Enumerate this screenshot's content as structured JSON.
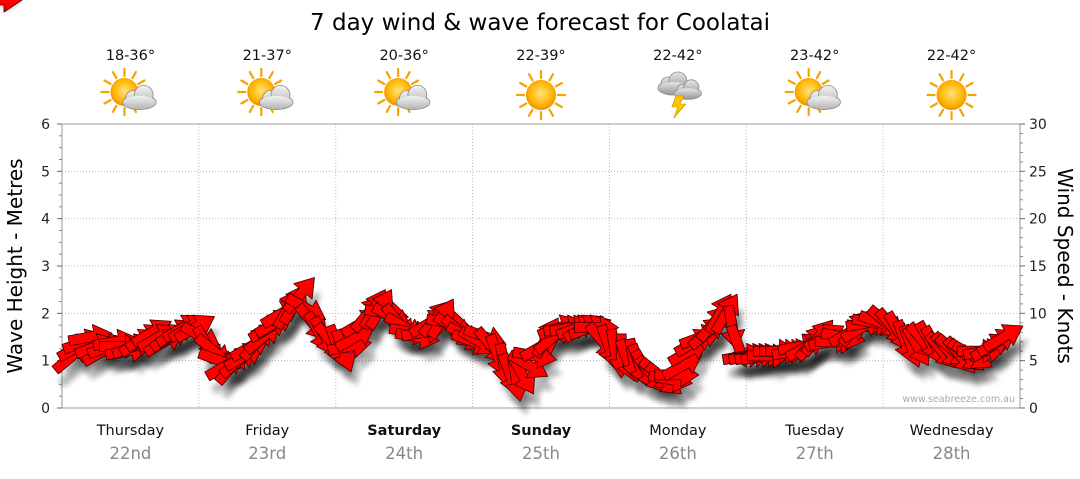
{
  "chart_data": {
    "type": "line",
    "title": "7 day wind & wave forecast for Coolatai",
    "ylabel": "Wave Height - Metres",
    "ylabel_right": "Wind Speed - Knots",
    "ylim": [
      0,
      6
    ],
    "ylim_right": [
      0,
      30
    ],
    "y_ticks": [
      "0",
      "1",
      "2",
      "3",
      "4",
      "5",
      "6"
    ],
    "y_ticks_right": [
      "0",
      "5",
      "10",
      "15",
      "20",
      "25",
      "30"
    ],
    "grid": true,
    "watermark": "www.seabreeze.com.au",
    "days": [
      {
        "name": "Thursday",
        "date": "22nd",
        "temp": "18-36°",
        "weather": "partly-cloudy-icon",
        "bold": false
      },
      {
        "name": "Friday",
        "date": "23rd",
        "temp": "21-37°",
        "weather": "partly-cloudy-icon",
        "bold": false
      },
      {
        "name": "Saturday",
        "date": "24th",
        "temp": "20-36°",
        "weather": "partly-cloudy-icon",
        "bold": true
      },
      {
        "name": "Sunday",
        "date": "25th",
        "temp": "22-39°",
        "weather": "sunny-icon",
        "bold": true
      },
      {
        "name": "Monday",
        "date": "26th",
        "temp": "22-42°",
        "weather": "thunderstorm-icon",
        "bold": false
      },
      {
        "name": "Tuesday",
        "date": "27th",
        "temp": "23-42°",
        "weather": "partly-cloudy-icon",
        "bold": false
      },
      {
        "name": "Wednesday",
        "date": "28th",
        "temp": "22-42°",
        "weather": "sunny-icon",
        "bold": false
      }
    ],
    "wind_series": {
      "name": "Wind",
      "color": "#ff0000",
      "speed_knots": [
        5.5,
        6.5,
        7,
        7.5,
        6.5,
        6,
        6.5,
        7,
        6.5,
        6,
        6.5,
        7,
        7.5,
        8,
        7.5,
        7,
        7.5,
        8,
        8.5,
        8.5,
        8.5,
        7.5,
        6.5,
        6,
        5,
        4.5,
        4.5,
        5,
        5.5,
        6.5,
        7,
        7.5,
        8.5,
        9,
        10,
        10.5,
        11,
        12,
        10.5,
        9,
        8,
        7.5,
        7,
        6.5,
        6,
        6.5,
        7.5,
        9,
        10,
        10.5,
        10.5,
        10,
        9.5,
        9,
        8.5,
        8,
        7.5,
        8,
        9,
        9.5,
        9.5,
        9,
        8.5,
        8,
        7.5,
        7,
        7,
        7.5,
        6.5,
        5.5,
        4.5,
        3.5,
        3,
        3.5,
        4.5,
        5.5,
        6.5,
        7.5,
        7.5,
        8.5,
        8.5,
        8.5,
        8.5,
        8.5,
        8.5,
        8.5,
        7,
        6.5,
        6,
        5.5,
        5,
        5,
        4.5,
        4,
        3.5,
        3.5,
        3,
        3,
        3.5,
        4.5,
        6,
        7,
        7.5,
        8,
        9,
        10,
        10,
        8.5,
        6.5,
        5.5,
        5.5,
        5.5,
        5.5,
        5.5,
        6,
        6,
        6,
        6,
        6.5,
        6.5,
        7,
        7.5,
        7.5,
        7,
        7,
        7.5,
        8,
        8.5,
        8.5,
        9,
        9,
        9,
        9,
        8.5,
        8,
        7,
        6.5,
        6.5,
        7,
        7,
        6.5,
        6,
        6,
        6,
        5.5,
        5.5,
        5.5,
        6,
        6,
        6.5,
        7,
        7.5,
        8
      ],
      "direction_deg": [
        50,
        60,
        70,
        80,
        70,
        60,
        70,
        80,
        90,
        80,
        70,
        60,
        60,
        60,
        60,
        60,
        60,
        60,
        60,
        60,
        60,
        120,
        150,
        130,
        110,
        60,
        40,
        50,
        60,
        60,
        40,
        50,
        60,
        60,
        60,
        30,
        30,
        40,
        120,
        140,
        150,
        150,
        140,
        160,
        160,
        80,
        60,
        60,
        40,
        30,
        30,
        100,
        120,
        140,
        120,
        100,
        100,
        80,
        60,
        40,
        30,
        100,
        120,
        130,
        120,
        110,
        120,
        110,
        140,
        160,
        170,
        160,
        170,
        150,
        120,
        100,
        60,
        30,
        50,
        70,
        80,
        80,
        70,
        60,
        70,
        90,
        140,
        160,
        170,
        180,
        160,
        170,
        160,
        150,
        140,
        130,
        130,
        100,
        90,
        60,
        60,
        60,
        70,
        50,
        40,
        30,
        30,
        170,
        160,
        80,
        80,
        80,
        80,
        90,
        90,
        90,
        90,
        80,
        80,
        60,
        40,
        40,
        60,
        80,
        90,
        100,
        60,
        40,
        60,
        80,
        100,
        110,
        130,
        140,
        150,
        160,
        160,
        150,
        140,
        150,
        150,
        140,
        140,
        130,
        140,
        130,
        120,
        90,
        80,
        60,
        60,
        60
      ]
    }
  }
}
